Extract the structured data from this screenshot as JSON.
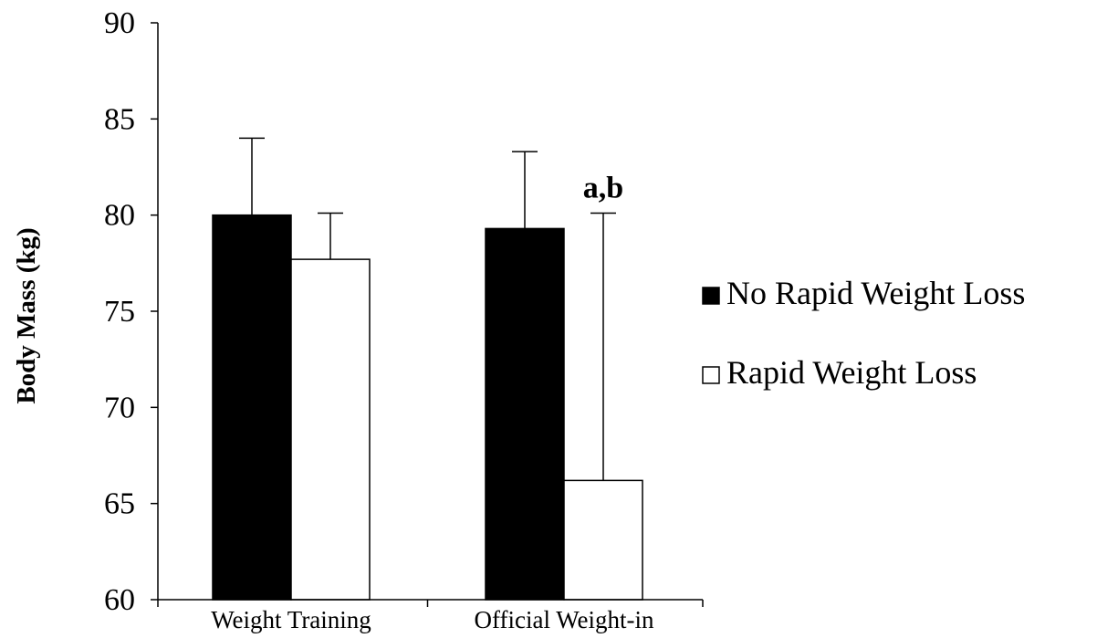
{
  "chart_data": {
    "type": "bar",
    "title": "",
    "ylabel": "Body Mass (kg)",
    "xlabel": "",
    "ylim": [
      60,
      90
    ],
    "yticks": [
      60,
      65,
      70,
      75,
      80,
      85,
      90
    ],
    "categories": [
      "Weight Training",
      "Official Weight-in"
    ],
    "series": [
      {
        "name": "No Rapid Weight Loss",
        "color": "#000000",
        "values": [
          80.0,
          79.3
        ],
        "error_upper": [
          84.0,
          83.3
        ]
      },
      {
        "name": "Rapid Weight Loss",
        "color": "#ffffff",
        "values": [
          77.7,
          66.2
        ],
        "error_upper": [
          80.1,
          80.1
        ]
      }
    ],
    "annotations": [
      {
        "text": "a,b",
        "category": 1,
        "series": 1
      }
    ],
    "legend": {
      "position": "right"
    },
    "grid": false
  }
}
